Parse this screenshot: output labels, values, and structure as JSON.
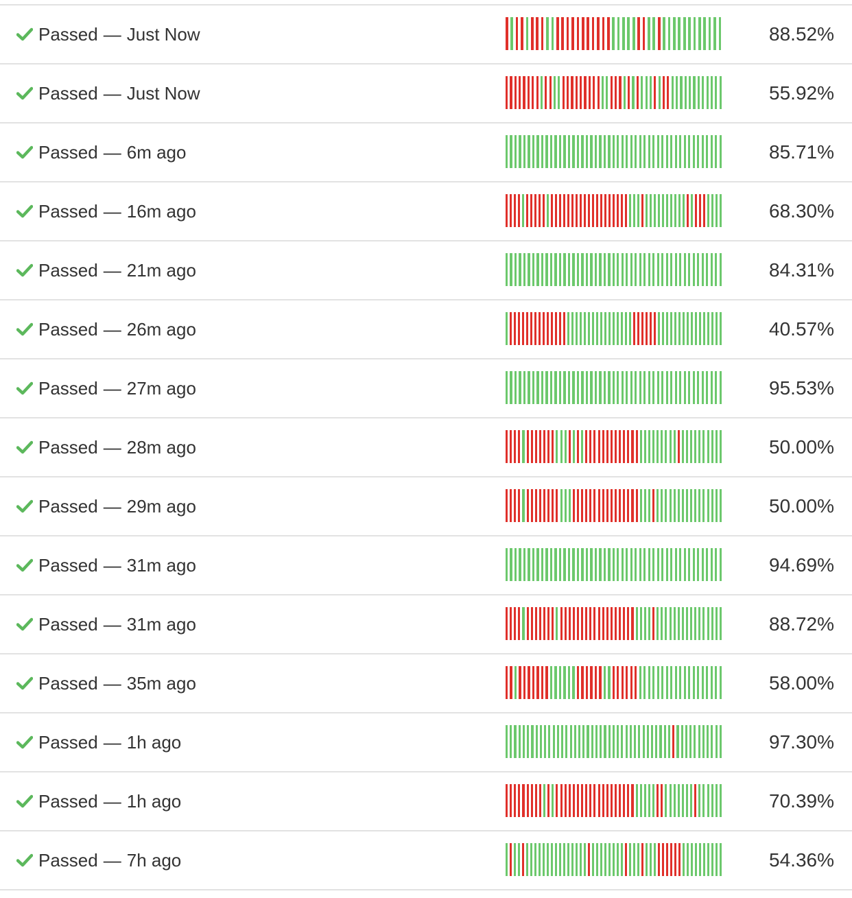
{
  "colors": {
    "pass": "#6cc86c",
    "fail": "#e0302a",
    "check": "#5cb85c",
    "divider": "#e2e2e2",
    "text": "#333333"
  },
  "icons": {
    "status": "check-icon"
  },
  "builds": [
    {
      "status": "Passed",
      "time": "Just Now",
      "coverage": "88.52%",
      "history": "rgrrgrrrggrrrrrrrrrrrgggggrrggrgggggggggggg"
    },
    {
      "status": "Passed",
      "time": "Just Now",
      "coverage": "55.92%",
      "history": "rrrrrrrrgrrggrrrrrrrrrggrrrgrgrgggrgrrgggggggggggg"
    },
    {
      "status": "Passed",
      "time": "6m ago",
      "coverage": "85.71%",
      "history": "ggggggggggggggggggggggggggggggggggggggggggggggggg"
    },
    {
      "status": "Passed",
      "time": "16m ago",
      "coverage": "68.30%",
      "history": "rrrrgrrrrrgrrrrrrrrrrrrrrrrrrrgggrggggggggggrgrrrgggg"
    },
    {
      "status": "Passed",
      "time": "21m ago",
      "coverage": "84.31%",
      "history": "ggggggggggggggggggggggggggggggggggggggggggggggggg"
    },
    {
      "status": "Passed",
      "time": "26m ago",
      "coverage": "40.57%",
      "history": "grrrrrrrrrrrrrrggggggggggggggggrrrrrrgggggggggggggggg"
    },
    {
      "status": "Passed",
      "time": "27m ago",
      "coverage": "95.53%",
      "history": "ggggggggggggggggggggggggggggggggggggggggggggggggg"
    },
    {
      "status": "Passed",
      "time": "28m ago",
      "coverage": "50.00%",
      "history": "rrrrgrrrrrrrgggrgrgrrrrrrrrrrrrrgggggggggrgggggggggg"
    },
    {
      "status": "Passed",
      "time": "29m ago",
      "coverage": "50.00%",
      "history": "rrrrgrrrrrrrrgggrrrrrrrrrrrrrrrrgggrgggggggggggggggg"
    },
    {
      "status": "Passed",
      "time": "31m ago",
      "coverage": "94.69%",
      "history": "ggggggggggggggggggggggggggggggggggggggggggggggggg"
    },
    {
      "status": "Passed",
      "time": "31m ago",
      "coverage": "88.72%",
      "history": "rrrrgrrrrrrrgrrrrrrrrrrrrrrrrrrggggrgggggggggggggggg"
    },
    {
      "status": "Passed",
      "time": "35m ago",
      "coverage": "58.00%",
      "history": "rrgrrrrrrrggggggrrrrrrggrrrrrrggggggggggggggggggg"
    },
    {
      "status": "Passed",
      "time": "1h ago",
      "coverage": "97.30%",
      "history": "gggggggggggggggggggggggggggggggggggggggrggggggggggg"
    },
    {
      "status": "Passed",
      "time": "1h ago",
      "coverage": "70.39%",
      "history": "rrrrrrrrrgrgrrrrrrrrrrrrrrrrrrrgggggrrgggggggrgggggg"
    },
    {
      "status": "Passed",
      "time": "7h ago",
      "coverage": "54.36%",
      "history": "grggrgggggggggggggggrggggggggrgggrgggrrrrrrgggggggggg"
    }
  ]
}
